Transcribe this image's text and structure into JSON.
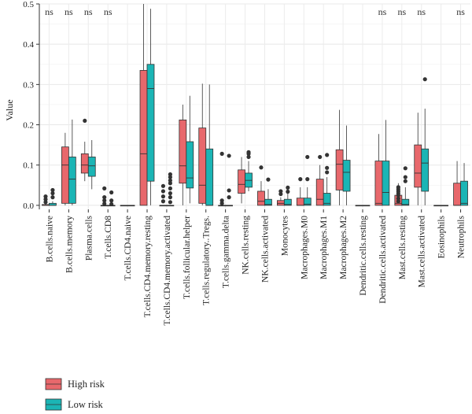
{
  "chart_data": {
    "type": "boxplot",
    "ylabel": "Value",
    "ylim": [
      -0.01,
      0.5
    ],
    "yticks": [
      "0.0",
      "0.1",
      "0.2",
      "0.3",
      "0.4",
      "0.5"
    ],
    "grid": true,
    "legend_position": "bottom-left",
    "series": [
      {
        "name": "High risk",
        "color": "#E8686C"
      },
      {
        "name": "Low risk",
        "color": "#1BB5B5"
      }
    ],
    "categories": [
      "B.cells.naive",
      "B.cells.memory",
      "Plasma.cells",
      "T.cells.CD8",
      "T.cells.CD4.naive",
      "T.cells.CD4.memory.resting",
      "T.cells.CD4.memory.activated",
      "T.cells.follicular.helper",
      "T.cells.regulatory..Tregs.",
      "T.cells.gamma.delta",
      "NK.cells.resting",
      "NK.cells.activated",
      "Monocytes",
      "Macrophages.M0",
      "Macrophages.M1",
      "Macrophages.M2",
      "Dendritic.cells.resting",
      "Dendritic.cells.activated",
      "Mast.cells.resting",
      "Mast.cells.activated",
      "Eosinophils",
      "Neutrophils"
    ],
    "significance": [
      "ns",
      "ns",
      "ns",
      "ns",
      "",
      "",
      "",
      "",
      "",
      "",
      "",
      "",
      "",
      "",
      "",
      "",
      "",
      "ns",
      "ns",
      "ns",
      "",
      "ns"
    ],
    "boxes": [
      {
        "high": {
          "min": 0,
          "q1": 0,
          "median": 0,
          "q3": 0.002,
          "max": 0.004,
          "outliers": [
            0.008,
            0.015,
            0.022
          ]
        },
        "low": {
          "min": 0,
          "q1": 0,
          "median": 0,
          "q3": 0.005,
          "max": 0.01,
          "outliers": [
            0.02,
            0.03,
            0.038
          ]
        }
      },
      {
        "high": {
          "min": 0,
          "q1": 0.005,
          "median": 0.1,
          "q3": 0.145,
          "max": 0.18,
          "outliers": []
        },
        "low": {
          "min": 0,
          "q1": 0.005,
          "median": 0.065,
          "q3": 0.12,
          "max": 0.213,
          "outliers": []
        }
      },
      {
        "high": {
          "min": 0.06,
          "q1": 0.08,
          "median": 0.1,
          "q3": 0.128,
          "max": 0.158,
          "outliers": [
            0.21
          ]
        },
        "low": {
          "min": 0.04,
          "q1": 0.072,
          "median": 0.098,
          "q3": 0.12,
          "max": 0.162,
          "outliers": []
        }
      },
      {
        "high": {
          "min": 0,
          "q1": 0,
          "median": 0,
          "q3": 0,
          "max": 0,
          "outliers": [
            0.004,
            0.012,
            0.02,
            0.042
          ]
        },
        "low": {
          "min": 0,
          "q1": 0,
          "median": 0,
          "q3": 0,
          "max": 0,
          "outliers": [
            0.003,
            0.012,
            0.032
          ]
        }
      },
      {
        "high": {
          "min": 0,
          "q1": 0,
          "median": 0,
          "q3": 0,
          "max": 0,
          "outliers": []
        },
        "low": {
          "min": 0,
          "q1": 0,
          "median": 0,
          "q3": 0,
          "max": 0,
          "outliers": []
        }
      },
      {
        "high": {
          "min": 0,
          "q1": 0,
          "median": 0.128,
          "q3": 0.335,
          "max": 0.5,
          "outliers": []
        },
        "low": {
          "min": 0,
          "q1": 0.06,
          "median": 0.29,
          "q3": 0.35,
          "max": 0.488,
          "outliers": []
        }
      },
      {
        "high": {
          "min": 0,
          "q1": 0,
          "median": 0,
          "q3": 0,
          "max": 0,
          "outliers": [
            0.01,
            0.022,
            0.035,
            0.048
          ]
        },
        "low": {
          "min": 0,
          "q1": 0,
          "median": 0,
          "q3": 0,
          "max": 0,
          "outliers": [
            0.008,
            0.02,
            0.03,
            0.042,
            0.055,
            0.062,
            0.07,
            0.077
          ]
        }
      },
      {
        "high": {
          "min": 0,
          "q1": 0.055,
          "median": 0.098,
          "q3": 0.212,
          "max": 0.25,
          "outliers": []
        },
        "low": {
          "min": 0.005,
          "q1": 0.043,
          "median": 0.068,
          "q3": 0.158,
          "max": 0.272,
          "outliers": []
        }
      },
      {
        "high": {
          "min": 0,
          "q1": 0.005,
          "median": 0.05,
          "q3": 0.192,
          "max": 0.302,
          "outliers": []
        },
        "low": {
          "min": 0,
          "q1": 0,
          "median": 0,
          "q3": 0.14,
          "max": 0.3,
          "outliers": []
        }
      },
      {
        "high": {
          "min": 0,
          "q1": 0,
          "median": 0,
          "q3": 0,
          "max": 0,
          "outliers": [
            0.005,
            0.012,
            0.128
          ]
        },
        "low": {
          "min": 0,
          "q1": 0,
          "median": 0,
          "q3": 0,
          "max": 0,
          "outliers": [
            0.02,
            0.037,
            0.123
          ]
        }
      },
      {
        "high": {
          "min": 0.005,
          "q1": 0.03,
          "median": 0.052,
          "q3": 0.088,
          "max": 0.12,
          "outliers": []
        },
        "low": {
          "min": 0.035,
          "q1": 0.045,
          "median": 0.062,
          "q3": 0.08,
          "max": 0.11,
          "outliers": [
            0.12,
            0.128,
            0.132
          ]
        }
      },
      {
        "high": {
          "min": 0,
          "q1": 0,
          "median": 0.01,
          "q3": 0.035,
          "max": 0.06,
          "outliers": [
            0.094
          ]
        },
        "low": {
          "min": 0,
          "q1": 0,
          "median": 0.002,
          "q3": 0.015,
          "max": 0.04,
          "outliers": [
            0.064
          ]
        }
      },
      {
        "high": {
          "min": 0,
          "q1": 0,
          "median": 0.005,
          "q3": 0.012,
          "max": 0.02,
          "outliers": [
            0.028,
            0.035
          ]
        },
        "low": {
          "min": 0,
          "q1": 0,
          "median": 0.002,
          "q3": 0.015,
          "max": 0.03,
          "outliers": [
            0.034,
            0.044
          ]
        }
      },
      {
        "high": {
          "min": 0,
          "q1": 0,
          "median": 0,
          "q3": 0.018,
          "max": 0.045,
          "outliers": [
            0.065
          ]
        },
        "low": {
          "min": 0,
          "q1": 0,
          "median": 0.003,
          "q3": 0.018,
          "max": 0.045,
          "outliers": [
            0.065,
            0.12
          ]
        }
      },
      {
        "high": {
          "min": 0,
          "q1": 0,
          "median": 0.015,
          "q3": 0.065,
          "max": 0.1,
          "outliers": [
            0.12
          ]
        },
        "low": {
          "min": 0,
          "q1": 0,
          "median": 0.005,
          "q3": 0.03,
          "max": 0.07,
          "outliers": [
            0.082,
            0.093,
            0.125
          ]
        }
      },
      {
        "high": {
          "min": 0,
          "q1": 0.038,
          "median": 0.102,
          "q3": 0.138,
          "max": 0.237,
          "outliers": []
        },
        "low": {
          "min": 0,
          "q1": 0.035,
          "median": 0.082,
          "q3": 0.112,
          "max": 0.198,
          "outliers": []
        }
      },
      {
        "high": {
          "min": 0,
          "q1": 0,
          "median": 0,
          "q3": 0,
          "max": 0,
          "outliers": []
        },
        "low": {
          "min": 0,
          "q1": 0,
          "median": 0,
          "q3": 0,
          "max": 0,
          "outliers": []
        }
      },
      {
        "high": {
          "min": 0,
          "q1": 0,
          "median": 0.005,
          "q3": 0.11,
          "max": 0.177,
          "outliers": []
        },
        "low": {
          "min": 0,
          "q1": 0,
          "median": 0.032,
          "q3": 0.11,
          "max": 0.212,
          "outliers": []
        }
      },
      {
        "high": {
          "min": 0,
          "q1": 0,
          "median": 0.005,
          "q3": 0.025,
          "max": 0.055,
          "outliers": [
            0.01,
            0.017,
            0.025,
            0.03,
            0.035,
            0.04,
            0.045
          ]
        },
        "low": {
          "min": 0,
          "q1": 0,
          "median": 0.002,
          "q3": 0.015,
          "max": 0.045,
          "outliers": [
            0.06,
            0.07,
            0.092
          ]
        }
      },
      {
        "high": {
          "min": 0,
          "q1": 0.045,
          "median": 0.08,
          "q3": 0.15,
          "max": 0.23,
          "outliers": []
        },
        "low": {
          "min": 0,
          "q1": 0.035,
          "median": 0.105,
          "q3": 0.14,
          "max": 0.24,
          "outliers": [
            0.313
          ]
        }
      },
      {
        "high": {
          "min": 0,
          "q1": 0,
          "median": 0,
          "q3": 0,
          "max": 0,
          "outliers": []
        },
        "low": {
          "min": 0,
          "q1": 0,
          "median": 0,
          "q3": 0,
          "max": 0,
          "outliers": []
        }
      },
      {
        "high": {
          "min": 0,
          "q1": 0,
          "median": 0,
          "q3": 0.055,
          "max": 0.11,
          "outliers": []
        },
        "low": {
          "min": 0,
          "q1": 0,
          "median": 0.005,
          "q3": 0.06,
          "max": 0.105,
          "outliers": []
        }
      }
    ]
  }
}
